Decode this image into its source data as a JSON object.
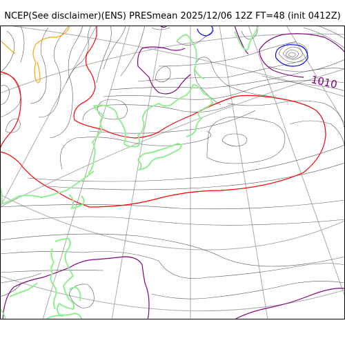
{
  "title": "NCEP(See disclaimer)(ENS) PRESmean 2025/12/06 12Z FT=48 (init 0412Z)",
  "contour_label": "1010",
  "colors": {
    "thin_isobar": "#555555",
    "isobar_1010": "#800080",
    "isobar_1015": "#ff0000",
    "isobar_1020": "#ffa500",
    "isobar_low": "#0000ff",
    "coastline": "#90ee90",
    "graticule": "#aaaaaa",
    "frame": "#000000"
  }
}
